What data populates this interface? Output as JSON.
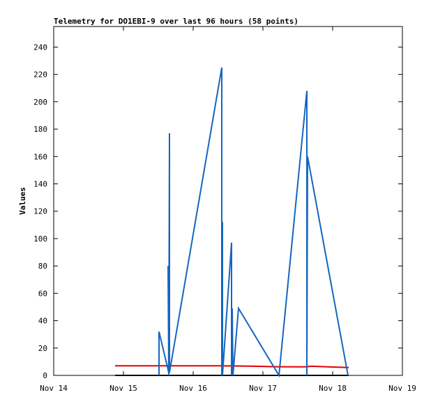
{
  "chart_data": {
    "type": "line",
    "title": "Telemetry for DO1EBI-9 over last 96 hours (58 points)",
    "y_label": "Values",
    "xlim": [
      14,
      19
    ],
    "xticks": [
      {
        "value": 14,
        "label": "Nov 14"
      },
      {
        "value": 15,
        "label": "Nov 15"
      },
      {
        "value": 16,
        "label": "Nov 16"
      },
      {
        "value": 17,
        "label": "Nov 17"
      },
      {
        "value": 18,
        "label": "Nov 18"
      },
      {
        "value": 19,
        "label": "Nov 19"
      }
    ],
    "ylim": [
      0,
      255
    ],
    "yticks": [
      0,
      20,
      40,
      60,
      80,
      100,
      120,
      140,
      160,
      180,
      200,
      220,
      240
    ],
    "series": [
      {
        "color": "#000000",
        "x": [
          14.88,
          18.23
        ],
        "values": [
          0,
          0
        ]
      },
      {
        "color": "#e00000",
        "x": [
          14.88,
          15.5,
          16.4,
          16.8,
          17.2,
          17.6,
          17.7,
          18.0,
          18.23
        ],
        "values": [
          7,
          7,
          7,
          6.8,
          6.3,
          6.2,
          6.7,
          6.1,
          5.7
        ]
      },
      {
        "color": "#1565c0",
        "x": [
          15.51,
          15.51,
          15.65,
          15.64,
          15.65,
          15.66,
          15.66,
          16.41,
          16.41,
          16.42,
          16.42,
          16.55,
          16.55,
          16.56,
          16.57,
          16.65,
          17.23,
          17.63,
          17.63,
          17.64,
          18.22
        ],
        "values": [
          0,
          32,
          2,
          80,
          0,
          177,
          2,
          225,
          0,
          112,
          0,
          97,
          0,
          49,
          0,
          49,
          0,
          208,
          0,
          160,
          0
        ]
      }
    ]
  }
}
